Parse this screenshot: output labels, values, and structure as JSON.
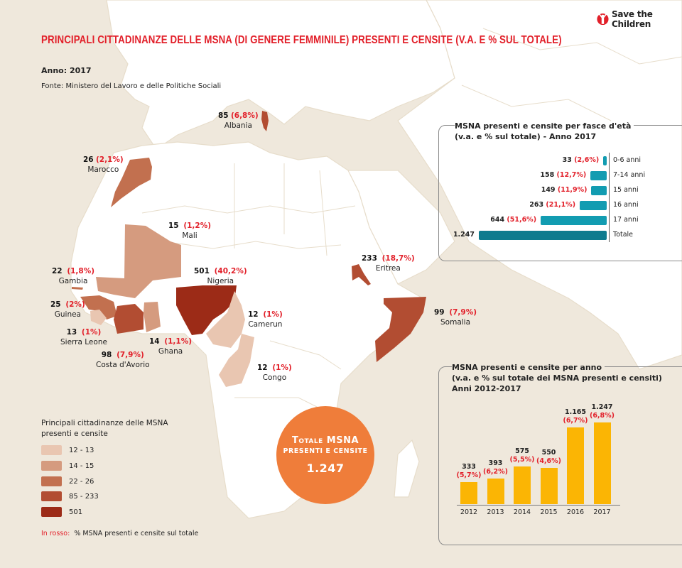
{
  "header": {
    "title": "PRINCIPALI CITTADINANZE DELLE MSNA (DI GENERE FEMMINILE) PRESENTI E CENSITE (V.A. E % SUL TOTALE)",
    "year": "Anno: 2017",
    "source": "Fonte: Ministero del Lavoro e delle Politiche Sociali",
    "logo_text": "Save the Children",
    "logo_icon": "child-arms-raised-icon"
  },
  "colors": {
    "title_red": "#e2202a",
    "class_12_13": "#e9c6b1",
    "class_14_15": "#d59b7f",
    "class_22_26": "#c2704f",
    "class_85_233": "#b24d32",
    "class_501": "#9c2b17",
    "age_bar": "#129cb1",
    "age_bar_total": "#0e7b8e",
    "year_bar": "#fbb504",
    "total_circle": "#ef7d3a"
  },
  "countries": [
    {
      "name": "Albania",
      "value": "85",
      "pct": "(6,8%)"
    },
    {
      "name": "Marocco",
      "value": "26",
      "pct": "(2,1%)"
    },
    {
      "name": "Mali",
      "value": "15",
      "pct": "(1,2%)"
    },
    {
      "name": "Gambia",
      "value": "22",
      "pct": "(1,8%)"
    },
    {
      "name": "Nigeria",
      "value": "501",
      "pct": "(40,2%)"
    },
    {
      "name": "Guinea",
      "value": "25",
      "pct": "(2%)"
    },
    {
      "name": "Sierra Leone",
      "value": "13",
      "pct": "(1%)"
    },
    {
      "name": "Ghana",
      "value": "14",
      "pct": "(1,1%)"
    },
    {
      "name": "Costa d'Avorio",
      "value": "98",
      "pct": "(7,9%)"
    },
    {
      "name": "Camerun",
      "value": "12",
      "pct": "(1%)"
    },
    {
      "name": "Congo",
      "value": "12",
      "pct": "(1%)"
    },
    {
      "name": "Eritrea",
      "value": "233",
      "pct": "(18,7%)"
    },
    {
      "name": "Somalia",
      "value": "99",
      "pct": "(7,9%)"
    }
  ],
  "legend": {
    "title": "Principali cittadinanze delle MSNA presenti e censite",
    "items": [
      {
        "label": "12 - 13"
      },
      {
        "label": "14 - 15"
      },
      {
        "label": "22 - 26"
      },
      {
        "label": "85 - 233"
      },
      {
        "label": "501"
      }
    ],
    "note_red": "In rosso:",
    "note_text": "% MSNA presenti e censite sul totale"
  },
  "total": {
    "line1": "Totale MSNA",
    "line2": "PRESENTI E CENSITE",
    "value": "1.247"
  },
  "chart_data": [
    {
      "type": "bar",
      "orientation": "horizontal",
      "title": "MSNA presenti e censite per fasce d'età",
      "subtitle": "(v.a. e % sul totale) - Anno 2017",
      "categories": [
        "0-6 anni",
        "7-14 anni",
        "15 anni",
        "16 anni",
        "17 anni",
        "Totale"
      ],
      "values": [
        33,
        158,
        149,
        263,
        644,
        1247
      ],
      "value_labels": [
        "33",
        "158",
        "149",
        "263",
        "644",
        "1.247"
      ],
      "pct_labels": [
        "(2,6%)",
        "(12,7%)",
        "(11,9%)",
        "(21,1%)",
        "(51,6%)",
        ""
      ],
      "xlim": [
        0,
        1247
      ]
    },
    {
      "type": "bar",
      "orientation": "vertical",
      "title": "MSNA presenti e censite per anno",
      "subtitle": "(v.a. e % sul totale dei MSNA presenti e censiti)",
      "subtitle2": "Anni 2012-2017",
      "categories": [
        "2012",
        "2013",
        "2014",
        "2015",
        "2016",
        "2017"
      ],
      "values": [
        333,
        393,
        575,
        550,
        1165,
        1247
      ],
      "value_labels": [
        "333",
        "393",
        "575",
        "550",
        "1.165",
        "1.247"
      ],
      "pct_labels": [
        "(5,7%)",
        "(6,2%)",
        "(5,5%)",
        "(4,6%)",
        "(6,7%)",
        "(6,8%)"
      ],
      "ylim": [
        0,
        1300
      ]
    }
  ]
}
